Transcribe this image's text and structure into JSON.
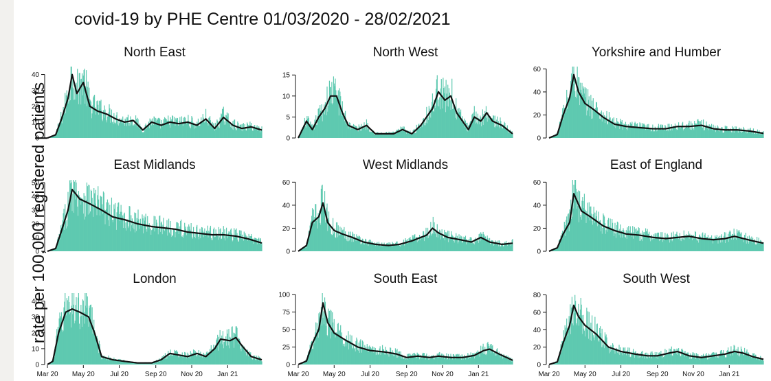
{
  "title": "covid-19 by PHE Centre 01/03/2020 - 28/02/2021",
  "ylabel": "rate per 100,000 registered patients",
  "colors": {
    "bars": "#5ec9b0",
    "line": "#111111",
    "axis": "#111111"
  },
  "chart_data": {
    "type": "bar",
    "x_tick_labels": [
      "Mar 20",
      "May 20",
      "Jul 20",
      "Sep 20",
      "Nov 20",
      "Jan 21"
    ],
    "x_tick_dates": [
      "2020-03-01",
      "2020-05-01",
      "2020-07-01",
      "2020-09-01",
      "2020-11-01",
      "2021-01-01"
    ],
    "x_range": [
      "2020-03-01",
      "2021-02-28"
    ],
    "grid": false,
    "panels": [
      {
        "title": "North East",
        "ylim": [
          0,
          45
        ],
        "yticks": [
          0,
          10,
          20,
          30,
          40
        ],
        "trend": [
          [
            "2020-03-01",
            0
          ],
          [
            "2020-03-15",
            2
          ],
          [
            "2020-03-25",
            12
          ],
          [
            "2020-04-05",
            25
          ],
          [
            "2020-04-12",
            40
          ],
          [
            "2020-04-20",
            28
          ],
          [
            "2020-05-01",
            35
          ],
          [
            "2020-05-12",
            20
          ],
          [
            "2020-05-25",
            17
          ],
          [
            "2020-06-10",
            15
          ],
          [
            "2020-06-25",
            12
          ],
          [
            "2020-07-10",
            10
          ],
          [
            "2020-07-25",
            11
          ],
          [
            "2020-08-10",
            5
          ],
          [
            "2020-08-25",
            10
          ],
          [
            "2020-09-10",
            8
          ],
          [
            "2020-09-25",
            10
          ],
          [
            "2020-10-10",
            9
          ],
          [
            "2020-10-25",
            10
          ],
          [
            "2020-11-10",
            8
          ],
          [
            "2020-11-25",
            12
          ],
          [
            "2020-12-10",
            6
          ],
          [
            "2020-12-25",
            13
          ],
          [
            "2021-01-10",
            8
          ],
          [
            "2021-01-25",
            6
          ],
          [
            "2021-02-10",
            7
          ],
          [
            "2021-02-28",
            5
          ]
        ]
      },
      {
        "title": "North West",
        "ylim": [
          0,
          17
        ],
        "yticks": [
          0,
          5,
          10,
          15
        ],
        "trend": [
          [
            "2020-03-01",
            0
          ],
          [
            "2020-03-15",
            4
          ],
          [
            "2020-03-25",
            2
          ],
          [
            "2020-04-05",
            5
          ],
          [
            "2020-04-15",
            7
          ],
          [
            "2020-04-25",
            10
          ],
          [
            "2020-05-05",
            10
          ],
          [
            "2020-05-15",
            6
          ],
          [
            "2020-05-25",
            3
          ],
          [
            "2020-06-10",
            2
          ],
          [
            "2020-06-25",
            3
          ],
          [
            "2020-07-10",
            1
          ],
          [
            "2020-07-25",
            1
          ],
          [
            "2020-08-10",
            1
          ],
          [
            "2020-08-25",
            2
          ],
          [
            "2020-09-10",
            1
          ],
          [
            "2020-09-25",
            3
          ],
          [
            "2020-10-05",
            5
          ],
          [
            "2020-10-15",
            7
          ],
          [
            "2020-10-25",
            11
          ],
          [
            "2020-11-05",
            9
          ],
          [
            "2020-11-15",
            10
          ],
          [
            "2020-11-25",
            6
          ],
          [
            "2020-12-05",
            4
          ],
          [
            "2020-12-15",
            2
          ],
          [
            "2020-12-25",
            5
          ],
          [
            "2021-01-05",
            4
          ],
          [
            "2021-01-15",
            6
          ],
          [
            "2021-01-25",
            4
          ],
          [
            "2021-02-10",
            3
          ],
          [
            "2021-02-28",
            1
          ]
        ]
      },
      {
        "title": "Yorkshire and Humber",
        "ylim": [
          0,
          62
        ],
        "yticks": [
          0,
          20,
          40,
          60
        ],
        "trend": [
          [
            "2020-03-01",
            0
          ],
          [
            "2020-03-15",
            3
          ],
          [
            "2020-03-25",
            20
          ],
          [
            "2020-04-05",
            35
          ],
          [
            "2020-04-12",
            55
          ],
          [
            "2020-04-20",
            40
          ],
          [
            "2020-05-01",
            30
          ],
          [
            "2020-05-15",
            25
          ],
          [
            "2020-06-01",
            18
          ],
          [
            "2020-06-20",
            12
          ],
          [
            "2020-07-10",
            10
          ],
          [
            "2020-08-01",
            9
          ],
          [
            "2020-08-25",
            8
          ],
          [
            "2020-09-15",
            8
          ],
          [
            "2020-10-05",
            10
          ],
          [
            "2020-10-25",
            10
          ],
          [
            "2020-11-15",
            11
          ],
          [
            "2020-12-05",
            8
          ],
          [
            "2020-12-25",
            7
          ],
          [
            "2021-01-15",
            7
          ],
          [
            "2021-02-05",
            6
          ],
          [
            "2021-02-28",
            4
          ]
        ]
      },
      {
        "title": "East Midlands",
        "ylim": [
          0,
          52
        ],
        "yticks": [
          0,
          10,
          20,
          30,
          40,
          50
        ],
        "trend": [
          [
            "2020-03-01",
            0
          ],
          [
            "2020-03-15",
            2
          ],
          [
            "2020-03-25",
            15
          ],
          [
            "2020-04-05",
            30
          ],
          [
            "2020-04-12",
            45
          ],
          [
            "2020-04-25",
            38
          ],
          [
            "2020-05-10",
            35
          ],
          [
            "2020-06-01",
            30
          ],
          [
            "2020-06-20",
            25
          ],
          [
            "2020-07-10",
            23
          ],
          [
            "2020-08-01",
            20
          ],
          [
            "2020-08-25",
            18
          ],
          [
            "2020-09-15",
            17
          ],
          [
            "2020-10-05",
            16
          ],
          [
            "2020-10-25",
            14
          ],
          [
            "2020-11-15",
            13
          ],
          [
            "2020-12-05",
            12
          ],
          [
            "2020-12-25",
            12
          ],
          [
            "2021-01-15",
            11
          ],
          [
            "2021-02-05",
            9
          ],
          [
            "2021-02-28",
            6
          ]
        ]
      },
      {
        "title": "West Midlands",
        "ylim": [
          0,
          62
        ],
        "yticks": [
          0,
          20,
          40,
          60
        ],
        "trend": [
          [
            "2020-03-01",
            0
          ],
          [
            "2020-03-15",
            5
          ],
          [
            "2020-03-25",
            25
          ],
          [
            "2020-04-05",
            30
          ],
          [
            "2020-04-12",
            42
          ],
          [
            "2020-04-20",
            25
          ],
          [
            "2020-05-01",
            18
          ],
          [
            "2020-05-15",
            15
          ],
          [
            "2020-06-01",
            12
          ],
          [
            "2020-06-20",
            8
          ],
          [
            "2020-07-10",
            6
          ],
          [
            "2020-08-01",
            5
          ],
          [
            "2020-08-20",
            6
          ],
          [
            "2020-09-10",
            9
          ],
          [
            "2020-09-25",
            12
          ],
          [
            "2020-10-05",
            14
          ],
          [
            "2020-10-15",
            20
          ],
          [
            "2020-10-25",
            16
          ],
          [
            "2020-11-10",
            12
          ],
          [
            "2020-12-01",
            10
          ],
          [
            "2020-12-20",
            8
          ],
          [
            "2021-01-05",
            12
          ],
          [
            "2021-01-20",
            8
          ],
          [
            "2021-02-10",
            6
          ],
          [
            "2021-02-28",
            7
          ]
        ]
      },
      {
        "title": "East of England",
        "ylim": [
          0,
          62
        ],
        "yticks": [
          0,
          20,
          40,
          60
        ],
        "trend": [
          [
            "2020-03-01",
            0
          ],
          [
            "2020-03-15",
            3
          ],
          [
            "2020-03-25",
            15
          ],
          [
            "2020-04-05",
            25
          ],
          [
            "2020-04-12",
            50
          ],
          [
            "2020-04-25",
            35
          ],
          [
            "2020-05-10",
            30
          ],
          [
            "2020-06-01",
            22
          ],
          [
            "2020-06-20",
            18
          ],
          [
            "2020-07-10",
            15
          ],
          [
            "2020-08-01",
            14
          ],
          [
            "2020-08-25",
            12
          ],
          [
            "2020-09-15",
            11
          ],
          [
            "2020-10-05",
            12
          ],
          [
            "2020-10-25",
            13
          ],
          [
            "2020-11-15",
            11
          ],
          [
            "2020-12-05",
            10
          ],
          [
            "2020-12-25",
            11
          ],
          [
            "2021-01-10",
            13
          ],
          [
            "2021-01-25",
            11
          ],
          [
            "2021-02-10",
            9
          ],
          [
            "2021-02-28",
            7
          ]
        ]
      },
      {
        "title": "London",
        "ylim": [
          0,
          45
        ],
        "yticks": [
          0,
          10,
          20,
          30,
          40
        ],
        "trend": [
          [
            "2020-03-01",
            0
          ],
          [
            "2020-03-10",
            2
          ],
          [
            "2020-03-20",
            20
          ],
          [
            "2020-04-01",
            33
          ],
          [
            "2020-04-12",
            35
          ],
          [
            "2020-04-25",
            33
          ],
          [
            "2020-05-10",
            30
          ],
          [
            "2020-05-20",
            20
          ],
          [
            "2020-06-01",
            5
          ],
          [
            "2020-06-20",
            3
          ],
          [
            "2020-07-10",
            2
          ],
          [
            "2020-08-01",
            1
          ],
          [
            "2020-08-25",
            1
          ],
          [
            "2020-09-10",
            3
          ],
          [
            "2020-09-25",
            7
          ],
          [
            "2020-10-10",
            6
          ],
          [
            "2020-10-25",
            5
          ],
          [
            "2020-11-10",
            7
          ],
          [
            "2020-11-25",
            5
          ],
          [
            "2020-12-10",
            10
          ],
          [
            "2020-12-20",
            16
          ],
          [
            "2021-01-05",
            15
          ],
          [
            "2021-01-15",
            17
          ],
          [
            "2021-01-25",
            12
          ],
          [
            "2021-02-10",
            5
          ],
          [
            "2021-02-28",
            3
          ]
        ]
      },
      {
        "title": "South East",
        "ylim": [
          0,
          102
        ],
        "yticks": [
          0,
          25,
          50,
          75,
          100
        ],
        "trend": [
          [
            "2020-03-01",
            0
          ],
          [
            "2020-03-15",
            5
          ],
          [
            "2020-03-25",
            30
          ],
          [
            "2020-04-05",
            50
          ],
          [
            "2020-04-12",
            88
          ],
          [
            "2020-04-20",
            60
          ],
          [
            "2020-05-01",
            45
          ],
          [
            "2020-05-20",
            35
          ],
          [
            "2020-06-10",
            25
          ],
          [
            "2020-07-01",
            20
          ],
          [
            "2020-07-25",
            18
          ],
          [
            "2020-08-15",
            15
          ],
          [
            "2020-09-01",
            10
          ],
          [
            "2020-09-20",
            12
          ],
          [
            "2020-10-10",
            10
          ],
          [
            "2020-10-25",
            12
          ],
          [
            "2020-11-15",
            10
          ],
          [
            "2020-12-05",
            10
          ],
          [
            "2020-12-25",
            13
          ],
          [
            "2021-01-10",
            20
          ],
          [
            "2021-01-20",
            22
          ],
          [
            "2021-02-05",
            15
          ],
          [
            "2021-02-28",
            6
          ]
        ]
      },
      {
        "title": "South West",
        "ylim": [
          0,
          82
        ],
        "yticks": [
          0,
          20,
          40,
          60,
          80
        ],
        "trend": [
          [
            "2020-03-01",
            0
          ],
          [
            "2020-03-15",
            3
          ],
          [
            "2020-03-25",
            25
          ],
          [
            "2020-04-05",
            45
          ],
          [
            "2020-04-12",
            68
          ],
          [
            "2020-04-20",
            55
          ],
          [
            "2020-05-01",
            45
          ],
          [
            "2020-05-20",
            35
          ],
          [
            "2020-06-10",
            20
          ],
          [
            "2020-07-01",
            15
          ],
          [
            "2020-07-25",
            12
          ],
          [
            "2020-08-15",
            10
          ],
          [
            "2020-09-01",
            10
          ],
          [
            "2020-09-20",
            13
          ],
          [
            "2020-10-05",
            15
          ],
          [
            "2020-10-25",
            10
          ],
          [
            "2020-11-15",
            8
          ],
          [
            "2020-12-05",
            10
          ],
          [
            "2020-12-25",
            12
          ],
          [
            "2021-01-10",
            15
          ],
          [
            "2021-01-25",
            13
          ],
          [
            "2021-02-10",
            9
          ],
          [
            "2021-02-28",
            6
          ]
        ]
      }
    ]
  }
}
